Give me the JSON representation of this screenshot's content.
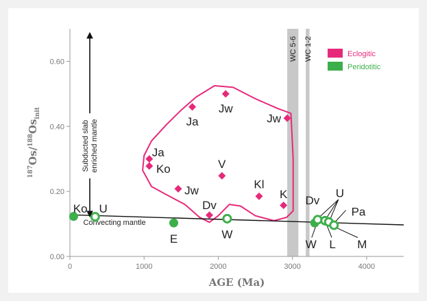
{
  "chart_data": {
    "type": "scatter",
    "xlabel": "AGE (Ma)",
    "ylabel_parts": {
      "sup1": "187",
      "os1": "Os/",
      "sup2": "188",
      "os2": "Os",
      "sub": "init"
    },
    "xlim": [
      0,
      4500
    ],
    "ylim": [
      0,
      0.7
    ],
    "x_ticks": [
      {
        "v": 0,
        "label": "0"
      },
      {
        "v": 1000,
        "label": "1000"
      },
      {
        "v": 2000,
        "label": "2000"
      },
      {
        "v": 3000,
        "label": "3000"
      },
      {
        "v": 4000,
        "label": "4000"
      }
    ],
    "y_ticks": [
      {
        "v": 0,
        "label": "0.00"
      },
      {
        "v": 0.2,
        "label": "0.20"
      },
      {
        "v": 0.4,
        "label": "0.40"
      },
      {
        "v": 0.6,
        "label": "0.60"
      }
    ],
    "grid": false,
    "legend_position": "top-right",
    "colors": {
      "eclogitic": "#e6297a",
      "peridotitic": "#3daf4a",
      "axis": "#999999",
      "band": "#c8c8c8"
    },
    "series": [
      {
        "name": "Eclogitic",
        "marker": "diamond",
        "points": [
          {
            "x": 1650,
            "y": 0.46,
            "label": "Ja"
          },
          {
            "x": 2100,
            "y": 0.5,
            "label": "Jw"
          },
          {
            "x": 2930,
            "y": 0.425,
            "label": "Jw"
          },
          {
            "x": 1070,
            "y": 0.3,
            "label": "Ja"
          },
          {
            "x": 1070,
            "y": 0.278,
            "label": "Ko"
          },
          {
            "x": 2050,
            "y": 0.248,
            "label": "V"
          },
          {
            "x": 1460,
            "y": 0.208,
            "label": "Jw"
          },
          {
            "x": 2550,
            "y": 0.185,
            "label": "Kl"
          },
          {
            "x": 2880,
            "y": 0.157,
            "label": "K"
          },
          {
            "x": 1880,
            "y": 0.127,
            "label": "Dv"
          }
        ]
      },
      {
        "name": "Peridotitic",
        "marker": "circle",
        "points": [
          {
            "x": 50,
            "y": 0.123,
            "label": "Ko",
            "hollow": false
          },
          {
            "x": 340,
            "y": 0.122,
            "label": "U",
            "hollow": true
          },
          {
            "x": 1400,
            "y": 0.103,
            "label": "E",
            "hollow": false
          },
          {
            "x": 2120,
            "y": 0.116,
            "label": "W",
            "hollow": true
          },
          {
            "x": 3300,
            "y": 0.103,
            "label": "W",
            "hollow": false
          },
          {
            "x": 3340,
            "y": 0.113,
            "label": "Dv",
            "hollow": true
          },
          {
            "x": 3440,
            "y": 0.11,
            "label": "L",
            "hollow": true
          },
          {
            "x": 3490,
            "y": 0.106,
            "label": "",
            "hollow": true
          },
          {
            "x": 3560,
            "y": 0.096,
            "label": "M",
            "hollow": true
          }
        ]
      }
    ],
    "reference_line": {
      "label": "Convecting mantle",
      "x": [
        0,
        4500
      ],
      "y": [
        0.128,
        0.097
      ]
    },
    "bands": [
      {
        "label": "WC 5-6",
        "x": [
          2930,
          3080
        ]
      },
      {
        "label": "WC 1-2",
        "x": [
          3180,
          3230
        ]
      }
    ],
    "arrow_label": [
      "Subducted slab",
      "enriched mantle"
    ],
    "arrow_y": [
      0.13,
      0.68
    ],
    "point_labels": [
      {
        "text": "Ja",
        "x": 1650,
        "y": 0.415
      },
      {
        "text": "Jw",
        "x": 2100,
        "y": 0.455
      },
      {
        "text": "Jw",
        "x": 2750,
        "y": 0.425
      },
      {
        "text": "Ja",
        "x": 1190,
        "y": 0.32
      },
      {
        "text": "Ko",
        "x": 1260,
        "y": 0.27
      },
      {
        "text": "V",
        "x": 2050,
        "y": 0.285
      },
      {
        "text": "Jw",
        "x": 1640,
        "y": 0.203
      },
      {
        "text": "Kl",
        "x": 2550,
        "y": 0.222
      },
      {
        "text": "K",
        "x": 2880,
        "y": 0.192
      },
      {
        "text": "Dv",
        "x": 1880,
        "y": 0.158
      },
      {
        "text": "Ko",
        "x": 140,
        "y": 0.148
      },
      {
        "text": "U",
        "x": 450,
        "y": 0.148
      },
      {
        "text": "E",
        "x": 1400,
        "y": 0.055
      },
      {
        "text": "W",
        "x": 2120,
        "y": 0.068
      },
      {
        "text": "Dv",
        "x": 3270,
        "y": 0.173
      },
      {
        "text": "U",
        "x": 3640,
        "y": 0.195
      },
      {
        "text": "Pa",
        "x": 3890,
        "y": 0.138
      },
      {
        "text": "W",
        "x": 3250,
        "y": 0.038
      },
      {
        "text": "L",
        "x": 3540,
        "y": 0.038
      },
      {
        "text": "M",
        "x": 3940,
        "y": 0.038
      }
    ],
    "pointer_lines": [
      {
        "from": [
          3620,
          0.175
        ],
        "to": [
          3350,
          0.118
        ]
      },
      {
        "from": [
          3620,
          0.175
        ],
        "to": [
          3450,
          0.115
        ]
      },
      {
        "from": [
          3620,
          0.175
        ],
        "to": [
          3500,
          0.11
        ]
      },
      {
        "from": [
          3720,
          0.142
        ],
        "to": [
          3560,
          0.102
        ]
      },
      {
        "from": [
          3260,
          0.058
        ],
        "to": [
          3330,
          0.103
        ]
      },
      {
        "from": [
          3530,
          0.058
        ],
        "to": [
          3450,
          0.104
        ]
      },
      {
        "from": [
          3880,
          0.058
        ],
        "to": [
          3575,
          0.09
        ]
      }
    ],
    "envelope": [
      [
        1000,
        0.31
      ],
      [
        1100,
        0.355
      ],
      [
        1300,
        0.405
      ],
      [
        1500,
        0.45
      ],
      [
        1700,
        0.49
      ],
      [
        1950,
        0.525
      ],
      [
        2200,
        0.52
      ],
      [
        2500,
        0.485
      ],
      [
        2800,
        0.455
      ],
      [
        2980,
        0.44
      ],
      [
        3010,
        0.3
      ],
      [
        3010,
        0.14
      ],
      [
        2920,
        0.12
      ],
      [
        2750,
        0.11
      ],
      [
        2500,
        0.125
      ],
      [
        2300,
        0.155
      ],
      [
        2150,
        0.16
      ],
      [
        2000,
        0.125
      ],
      [
        1880,
        0.105
      ],
      [
        1750,
        0.12
      ],
      [
        1550,
        0.16
      ],
      [
        1300,
        0.19
      ],
      [
        1100,
        0.215
      ],
      [
        980,
        0.265
      ],
      [
        1000,
        0.31
      ]
    ]
  }
}
